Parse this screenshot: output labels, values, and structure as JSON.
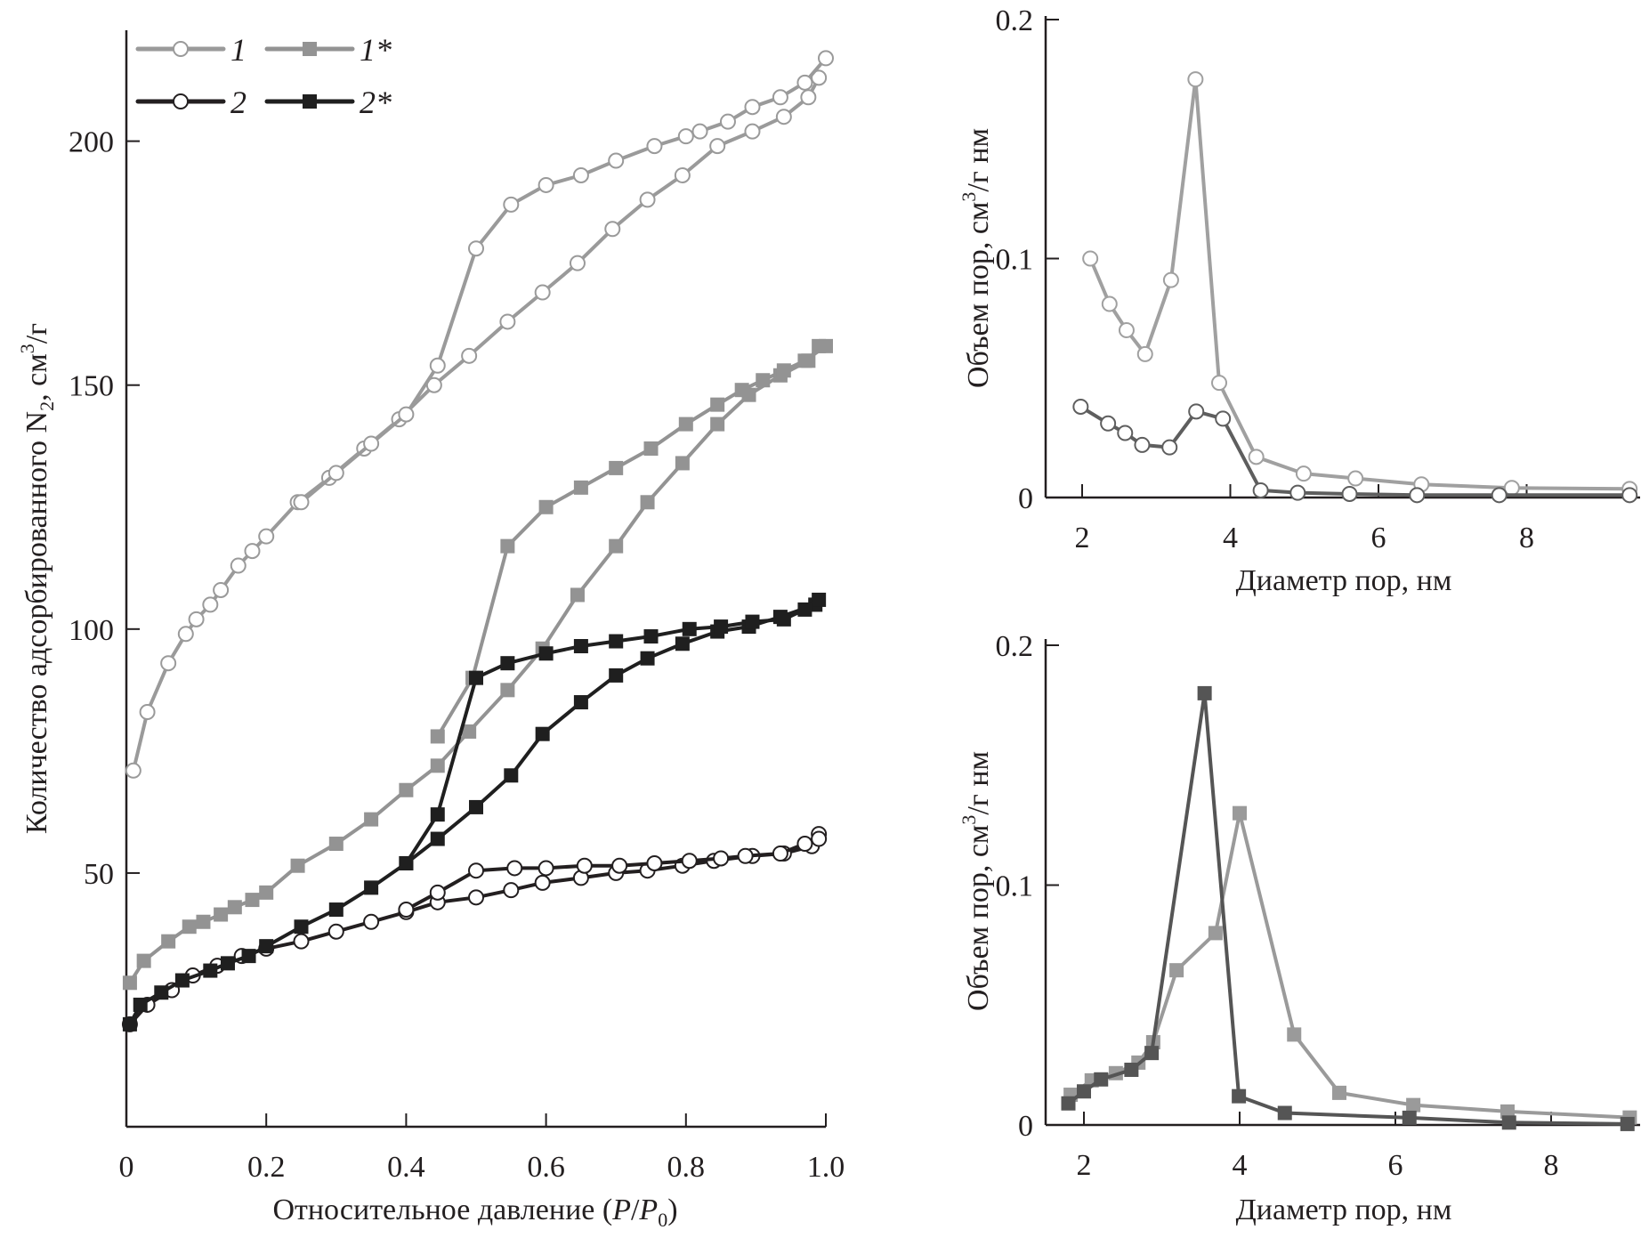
{
  "colors": {
    "series1": "#9a9a9a",
    "series2": "#231f20",
    "series1star": "#939393",
    "series2star": "#1f1f1f",
    "pore_upper_1": "#a0a0a0",
    "pore_upper_2": "#5e5e5e",
    "pore_lower_1star": "#9a9a9a",
    "pore_lower_2star": "#555555",
    "axis": "#231f20"
  },
  "chart_data": [
    {
      "id": "isotherms",
      "type": "line",
      "title": "",
      "xlabel": "Относительное давление (P/P0)",
      "xlabel_parts": {
        "prefix": "Относительное давление (",
        "P": "P",
        "slash": "/",
        "P0": "P",
        "sub": "0",
        "suffix": ")"
      },
      "ylabel": "Количество адсорбированного N2, см3/г",
      "ylabel_parts": {
        "prefix": "Количество адсорбированного N",
        "sub": "2",
        "mid": ", см",
        "sup": "3",
        "suffix": "/г"
      },
      "xlim": [
        0,
        1.0
      ],
      "ylim": [
        -2,
        222
      ],
      "xticks": [
        0,
        0.2,
        0.4,
        0.6,
        0.8,
        1.0
      ],
      "xtick_labels": [
        "0",
        "0.2",
        "0.4",
        "0.6",
        "0.8",
        "1.0"
      ],
      "yticks": [
        50,
        100,
        150,
        200
      ],
      "ytick_labels": [
        "50",
        "100",
        "150",
        "200"
      ],
      "grid": false,
      "legend_position": "top-left",
      "legend": [
        {
          "label": "1",
          "marker": "circle-open",
          "color_key": "series1"
        },
        {
          "label": "1*",
          "marker": "square-filled",
          "color_key": "series1star"
        },
        {
          "label": "2",
          "marker": "circle-open",
          "color_key": "series2"
        },
        {
          "label": "2*",
          "marker": "square-filled",
          "color_key": "series2star"
        }
      ],
      "series": [
        {
          "name": "1",
          "marker": "circle-open",
          "color_key": "series1",
          "branches": [
            {
              "branch": "adsorption",
              "x": [
                0.01,
                0.03,
                0.06,
                0.085,
                0.1,
                0.12,
                0.135,
                0.16,
                0.18,
                0.2,
                0.245,
                0.29,
                0.34,
                0.39,
                0.44,
                0.49,
                0.545,
                0.595,
                0.645,
                0.695,
                0.745,
                0.795,
                0.845,
                0.895,
                0.94,
                0.975,
                0.99
              ],
              "y": [
                71,
                83,
                93,
                99,
                102,
                105,
                108,
                113,
                116,
                119,
                126,
                131,
                137,
                143,
                150,
                156,
                163,
                169,
                175,
                182,
                188,
                193,
                199,
                202,
                205,
                209,
                213
              ]
            },
            {
              "branch": "desorption",
              "x": [
                1.0,
                0.97,
                0.935,
                0.895,
                0.86,
                0.82,
                0.8,
                0.755,
                0.7,
                0.65,
                0.6,
                0.55,
                0.5,
                0.445,
                0.4,
                0.35,
                0.3,
                0.25
              ],
              "y": [
                217,
                212,
                209,
                207,
                204,
                202,
                201,
                199,
                196,
                193,
                191,
                187,
                178,
                154,
                144,
                138,
                132,
                126
              ]
            }
          ]
        },
        {
          "name": "1*",
          "marker": "square-filled",
          "color_key": "series1star",
          "branches": [
            {
              "branch": "adsorption",
              "x": [
                0.005,
                0.025,
                0.06,
                0.09,
                0.11,
                0.135,
                0.155,
                0.18,
                0.2,
                0.245,
                0.3,
                0.35,
                0.4,
                0.445,
                0.49,
                0.545,
                0.595,
                0.645,
                0.7,
                0.745,
                0.795,
                0.845,
                0.89,
                0.935,
                0.975,
                0.99
              ],
              "y": [
                27.5,
                32,
                36,
                39,
                40,
                41.5,
                43,
                44.5,
                46,
                51.5,
                56,
                61,
                67,
                72,
                79,
                87.5,
                96,
                107,
                117,
                126,
                134,
                142,
                148,
                152,
                155,
                158
              ]
            },
            {
              "branch": "desorption",
              "x": [
                1.0,
                0.97,
                0.94,
                0.91,
                0.88,
                0.845,
                0.8,
                0.75,
                0.7,
                0.65,
                0.6,
                0.545,
                0.495,
                0.445
              ],
              "y": [
                158,
                155,
                153,
                151,
                149,
                146,
                142,
                137,
                133,
                129,
                125,
                117,
                90,
                78
              ]
            }
          ]
        },
        {
          "name": "2",
          "marker": "circle-open",
          "color_key": "series2",
          "branches": [
            {
              "branch": "adsorption",
              "x": [
                0.005,
                0.03,
                0.065,
                0.095,
                0.13,
                0.165,
                0.2,
                0.25,
                0.3,
                0.35,
                0.4,
                0.445,
                0.5,
                0.55,
                0.595,
                0.65,
                0.7,
                0.745,
                0.795,
                0.84,
                0.895,
                0.94,
                0.98,
                0.99
              ],
              "y": [
                19,
                23,
                26,
                29,
                31,
                33,
                34.5,
                36,
                38,
                40,
                42,
                44,
                45,
                46.5,
                48,
                49,
                50,
                50.5,
                51.5,
                52.5,
                53.5,
                54,
                55.5,
                58
              ]
            },
            {
              "branch": "desorption",
              "x": [
                0.99,
                0.97,
                0.935,
                0.885,
                0.85,
                0.805,
                0.755,
                0.705,
                0.655,
                0.6,
                0.555,
                0.5,
                0.445,
                0.4
              ],
              "y": [
                57,
                56,
                54,
                53.5,
                53,
                52.5,
                52,
                51.5,
                51.5,
                51,
                51,
                50.5,
                46,
                42.5
              ]
            }
          ]
        },
        {
          "name": "2*",
          "marker": "square-filled",
          "color_key": "series2star",
          "branches": [
            {
              "branch": "adsorption",
              "x": [
                0.005,
                0.02,
                0.05,
                0.08,
                0.12,
                0.145,
                0.175,
                0.2,
                0.25,
                0.3,
                0.35,
                0.4,
                0.445,
                0.5,
                0.55,
                0.595,
                0.65,
                0.7,
                0.745,
                0.795,
                0.845,
                0.89,
                0.935,
                0.985
              ],
              "y": [
                19,
                23,
                25.5,
                28,
                30,
                31.5,
                33,
                35,
                39,
                42.5,
                47,
                52,
                57,
                63.5,
                70,
                78.5,
                85,
                90.5,
                94,
                97,
                99.5,
                100.5,
                102.5,
                105
              ]
            },
            {
              "branch": "desorption",
              "x": [
                0.99,
                0.97,
                0.94,
                0.895,
                0.85,
                0.805,
                0.75,
                0.7,
                0.65,
                0.6,
                0.545,
                0.5,
                0.445,
                0.4
              ],
              "y": [
                106,
                104,
                102,
                101.5,
                100.5,
                100,
                98.5,
                97.5,
                96.5,
                95,
                93,
                90,
                62,
                52
              ]
            }
          ]
        }
      ]
    },
    {
      "id": "pore-distribution-upper",
      "type": "line",
      "title": "",
      "xlabel": "Диаметр пор, нм",
      "ylabel": "Объем пор, см3/г нм",
      "ylabel_parts": {
        "prefix": "Объем пор, см",
        "sup": "3",
        "suffix": "/г нм"
      },
      "xlim": [
        1.5,
        9.5
      ],
      "ylim": [
        0,
        0.2
      ],
      "xticks": [
        2,
        4,
        6,
        8
      ],
      "xtick_labels": [
        "2",
        "4",
        "6",
        "8"
      ],
      "yticks": [
        0,
        0.1,
        0.2
      ],
      "ytick_labels": [
        "0",
        "0.1",
        "0.2"
      ],
      "grid": false,
      "series": [
        {
          "name": "1",
          "marker": "circle-open",
          "color_key": "pore_upper_1",
          "x": [
            2.11,
            2.37,
            2.6,
            2.85,
            3.2,
            3.53,
            3.85,
            4.35,
            4.99,
            5.69,
            6.58,
            7.8,
            9.39
          ],
          "y": [
            0.1,
            0.081,
            0.07,
            0.06,
            0.091,
            0.175,
            0.048,
            0.017,
            0.01,
            0.008,
            0.0055,
            0.004,
            0.0036
          ]
        },
        {
          "name": "2",
          "marker": "circle-open",
          "color_key": "pore_upper_2",
          "x": [
            1.98,
            2.35,
            2.58,
            2.81,
            3.18,
            3.54,
            3.9,
            4.41,
            4.91,
            5.61,
            6.52,
            7.63,
            9.39
          ],
          "y": [
            0.038,
            0.031,
            0.027,
            0.022,
            0.021,
            0.036,
            0.033,
            0.003,
            0.002,
            0.0015,
            0.001,
            0.001,
            0.001
          ]
        }
      ]
    },
    {
      "id": "pore-distribution-lower",
      "type": "line",
      "title": "",
      "xlabel": "Диаметр пор, нм",
      "ylabel": "Объем пор, см3/г нм",
      "ylabel_parts": {
        "prefix": "Объем пор, см",
        "sup": "3",
        "suffix": "/г нм"
      },
      "xlim": [
        1.5,
        9.1
      ],
      "ylim": [
        0,
        0.2
      ],
      "xticks": [
        2,
        4,
        6,
        8
      ],
      "xtick_labels": [
        "2",
        "4",
        "6",
        "8"
      ],
      "yticks": [
        0,
        0.1,
        0.2
      ],
      "ytick_labels": [
        "0",
        "0.1",
        "0.2"
      ],
      "grid": false,
      "series": [
        {
          "name": "1*",
          "marker": "square-filled",
          "color_key": "pore_lower_1star",
          "x": [
            1.83,
            2.1,
            2.41,
            2.7,
            2.89,
            3.19,
            3.69,
            4.0,
            4.7,
            5.28,
            6.23,
            7.44,
            9.01
          ],
          "y": [
            0.0126,
            0.0186,
            0.0216,
            0.026,
            0.0345,
            0.0645,
            0.08,
            0.13,
            0.0377,
            0.0134,
            0.0083,
            0.0056,
            0.0031
          ]
        },
        {
          "name": "2*",
          "marker": "square-filled",
          "color_key": "pore_lower_2star",
          "x": [
            1.8,
            2.0,
            2.22,
            2.61,
            2.87,
            3.55,
            3.99,
            4.58,
            6.18,
            7.46,
            8.98
          ],
          "y": [
            0.009,
            0.014,
            0.019,
            0.023,
            0.03,
            0.18,
            0.012,
            0.005,
            0.003,
            0.001,
            0.0004
          ]
        }
      ]
    }
  ]
}
